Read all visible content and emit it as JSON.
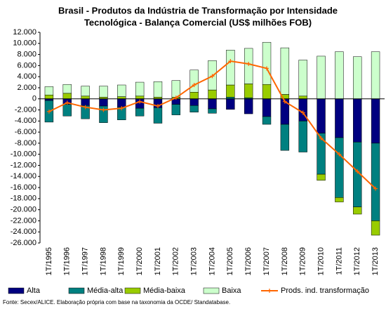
{
  "chart_data": {
    "type": "bar",
    "stacked": true,
    "title": [
      "Brasil - Produtos da Indústria de Transformação por Intensidade",
      "Tecnológica - Balança Comercial (US$ milhões FOB)"
    ],
    "source": "Fonte: Secex/ALICE. Elaboração própria com base na taxonomia da OCDE/ Standatabase.",
    "categories": [
      "1T/1995",
      "1T/1996",
      "1T/1997",
      "1T/1998",
      "1T/1999",
      "1T/2000",
      "1T/2001",
      "1T/2002",
      "1T/2003",
      "1T/2004",
      "1T/2005",
      "1T/2006",
      "1T/2007",
      "1T/2008",
      "1T/2009",
      "1T/2010",
      "1T/2011",
      "1T/2012",
      "1T/2013"
    ],
    "series": [
      {
        "name": "Alta",
        "color": "#000080",
        "values": [
          -300,
          -1000,
          -1200,
          -1300,
          -1500,
          -1700,
          -1600,
          -1000,
          -1200,
          -1800,
          -1900,
          -2700,
          -3200,
          -4600,
          -4000,
          -6200,
          -7000,
          -7800,
          -8000
        ]
      },
      {
        "name": "Média-alta",
        "color": "#008080",
        "values": [
          -3900,
          -2100,
          -2400,
          -3000,
          -2300,
          -1400,
          -2800,
          -1900,
          -1200,
          -800,
          300,
          200,
          -1400,
          -4700,
          -5600,
          -7400,
          -10800,
          -11700,
          -14000
        ]
      },
      {
        "name": "Média-baixa",
        "color": "#99cc00",
        "values": [
          700,
          1000,
          500,
          300,
          400,
          500,
          300,
          300,
          1200,
          1600,
          2200,
          2500,
          2600,
          800,
          500,
          -1100,
          -800,
          -1300,
          -2600
        ]
      },
      {
        "name": "Baixa",
        "color": "#ccffcc",
        "values": [
          1500,
          1600,
          1800,
          2000,
          2100,
          2500,
          2800,
          3000,
          4000,
          5300,
          6300,
          6400,
          7600,
          8400,
          6500,
          7700,
          8500,
          7600,
          8500
        ]
      },
      {
        "name": "Prods. ind. transformação",
        "type": "line",
        "color": "#ff6600",
        "values": [
          -2300,
          -700,
          -1500,
          -2000,
          -1700,
          -500,
          -1300,
          200,
          2500,
          4100,
          6800,
          6300,
          5500,
          -500,
          -2500,
          -7100,
          -10000,
          -13100,
          -16200
        ]
      }
    ],
    "ylim": [
      -26000,
      12000
    ],
    "yticks": [
      {
        "value": 12000,
        "label": "12.000"
      },
      {
        "value": 10000,
        "label": "10.000"
      },
      {
        "value": 8000,
        "label": "8.000"
      },
      {
        "value": 6000,
        "label": "6.000"
      },
      {
        "value": 4000,
        "label": "4.000"
      },
      {
        "value": 2000,
        "label": "2.000"
      },
      0,
      {
        "value": -2000,
        "label": "-2.000"
      },
      {
        "value": -4000,
        "label": "-4.000"
      },
      {
        "value": -6000,
        "label": "-6.000"
      },
      {
        "value": -8000,
        "label": "-8.000"
      },
      {
        "value": -10000,
        "label": "-10.000"
      },
      {
        "value": -12000,
        "label": "-12.000"
      },
      {
        "value": -14000,
        "label": "-14.000"
      },
      {
        "value": -16000,
        "label": "-16.000"
      },
      {
        "value": -18000,
        "label": "-18.000"
      },
      {
        "value": -20000,
        "label": "-20.000"
      },
      {
        "value": -22000,
        "label": "-22.000"
      },
      {
        "value": -24000,
        "label": "-24.000"
      },
      {
        "value": -26000,
        "label": "-26.000"
      }
    ],
    "grid": false
  }
}
